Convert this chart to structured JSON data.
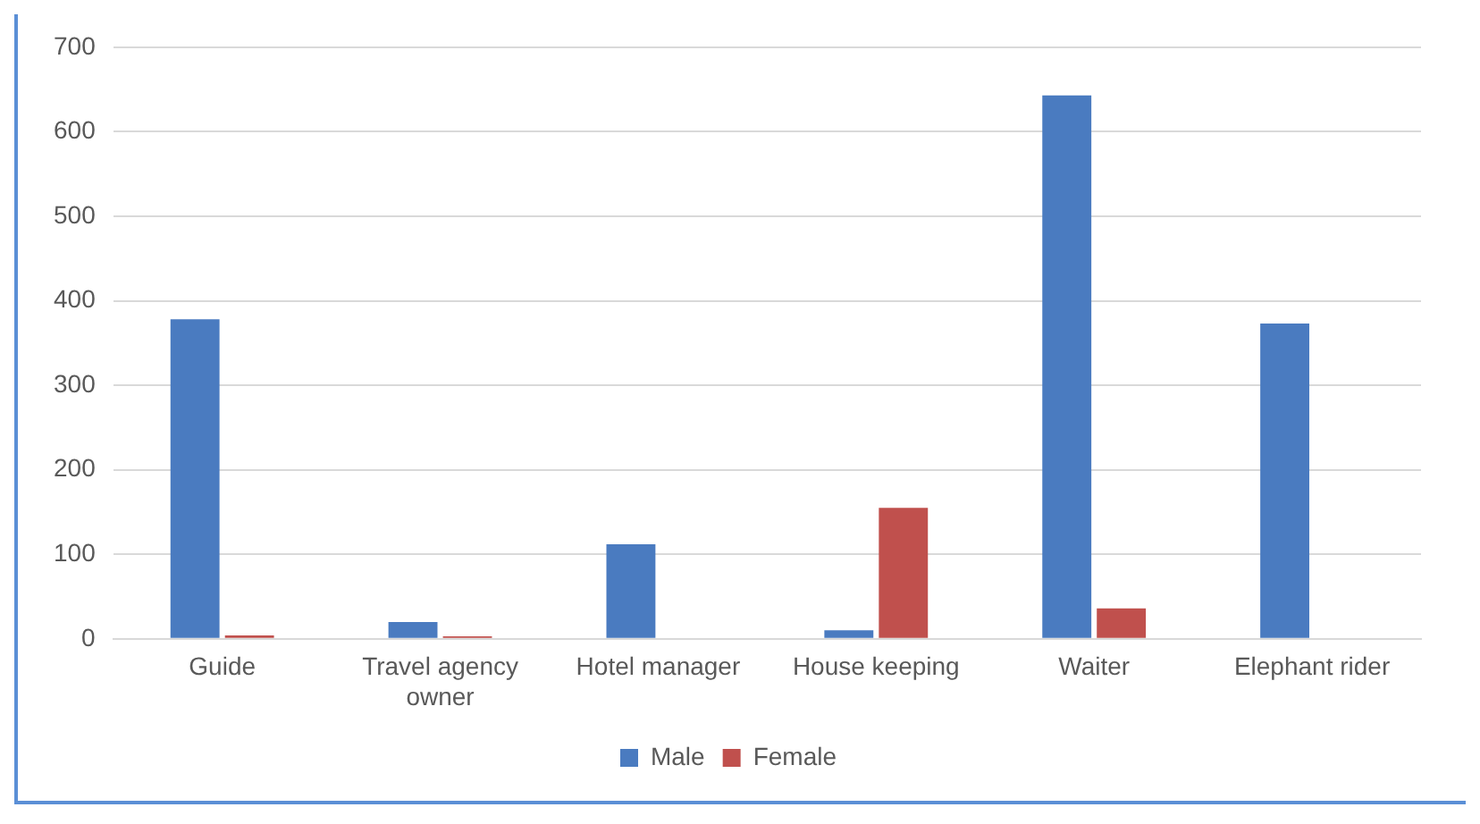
{
  "chart_data": {
    "type": "bar",
    "categories": [
      "Guide",
      "Travel agency owner",
      "Hotel manager",
      "House keeping",
      "Waiter",
      "Elephant rider"
    ],
    "series": [
      {
        "name": "Male",
        "color": "#4a7bc0",
        "values": [
          378,
          20,
          112,
          10,
          643,
          373
        ]
      },
      {
        "name": "Female",
        "color": "#c0504d",
        "values": [
          4,
          3,
          0,
          155,
          36,
          0
        ]
      }
    ],
    "ylim": [
      0,
      700
    ],
    "yticks": [
      0,
      100,
      200,
      300,
      400,
      500,
      600,
      700
    ],
    "grid": "y",
    "legend": "bottom"
  }
}
